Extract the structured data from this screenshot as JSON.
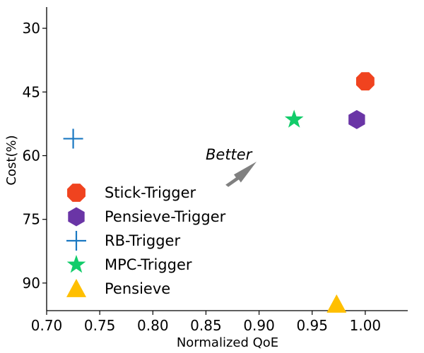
{
  "chart_data": {
    "type": "scatter",
    "xlabel": "Normalized QoE",
    "ylabel": "Cost(%)",
    "xlim": [
      0.7,
      1.04
    ],
    "ylim": [
      25,
      96.5
    ],
    "y_inverted": true,
    "x_ticks": [
      0.7,
      0.75,
      0.8,
      0.85,
      0.9,
      0.95,
      1.0
    ],
    "x_tick_labels": [
      "0.70",
      "0.75",
      "0.80",
      "0.85",
      "0.90",
      "0.95",
      "1.00"
    ],
    "y_ticks": [
      30,
      45,
      60,
      75,
      90
    ],
    "y_tick_labels": [
      "30",
      "45",
      "60",
      "75",
      "90"
    ],
    "grid": false,
    "legend_position": "lower-left",
    "series": [
      {
        "name": "Stick-Trigger",
        "marker": "octagon",
        "color": "#f0431f",
        "x": [
          1.0
        ],
        "y": [
          42.5
        ]
      },
      {
        "name": "Pensieve-Trigger",
        "marker": "hexagon",
        "color": "#6a35a6",
        "x": [
          0.992
        ],
        "y": [
          51.5
        ]
      },
      {
        "name": "RB-Trigger",
        "marker": "plus",
        "color": "#1a78c2",
        "x": [
          0.725
        ],
        "y": [
          56.0
        ]
      },
      {
        "name": "MPC-Trigger",
        "marker": "star",
        "color": "#12cc6a",
        "x": [
          0.933
        ],
        "y": [
          51.5
        ]
      },
      {
        "name": "Pensieve",
        "marker": "triangle",
        "color": "#ffbf00",
        "x": [
          0.973
        ],
        "y": [
          95.0
        ]
      }
    ],
    "annotation": {
      "text": "Better",
      "color": "#808080"
    }
  }
}
